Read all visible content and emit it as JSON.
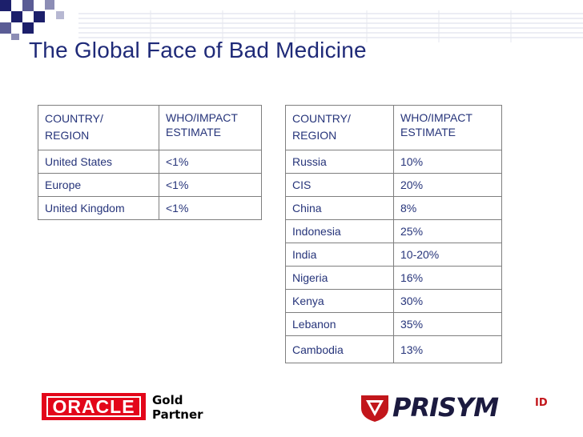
{
  "slide": {
    "title": "The Global Face of Bad Medicine"
  },
  "table_left": {
    "header": {
      "col1": [
        "COUNTRY/",
        "REGION"
      ],
      "col2": [
        "WHO/IMPACT",
        "ESTIMATE"
      ]
    },
    "rows": [
      {
        "region": "United States",
        "estimate": "<1%"
      },
      {
        "region": "Europe",
        "estimate": "<1%"
      },
      {
        "region": "United Kingdom",
        "estimate": "<1%"
      }
    ]
  },
  "table_right": {
    "header": {
      "col1": [
        "COUNTRY/",
        "REGION"
      ],
      "col2": [
        "WHO/IMPACT",
        "ESTIMATE"
      ]
    },
    "rows": [
      {
        "region": "Russia",
        "estimate": "10%"
      },
      {
        "region": "CIS",
        "estimate": "20%"
      },
      {
        "region": "China",
        "estimate": "8%"
      },
      {
        "region": "Indonesia",
        "estimate": "25%"
      },
      {
        "region": "India",
        "estimate": "10-20%"
      },
      {
        "region": "Nigeria",
        "estimate": "16%"
      },
      {
        "region": "Kenya",
        "estimate": "30%"
      },
      {
        "region": "Lebanon",
        "estimate": "35%"
      },
      {
        "region": "Cambodia",
        "estimate": "13%"
      }
    ]
  },
  "footer": {
    "oracle_logo_text": "ORACLE",
    "partner_line1": "Gold",
    "partner_line2": "Partner",
    "prisym_logo_text": "PRISYM",
    "prisym_logo_suffix": "ID"
  },
  "colors": {
    "title": "#1f2a78",
    "table_text": "#26347a",
    "oracle_red": "#e3061a",
    "prisym_red": "#c2161b",
    "checker_navy": "#1c1f6b"
  }
}
